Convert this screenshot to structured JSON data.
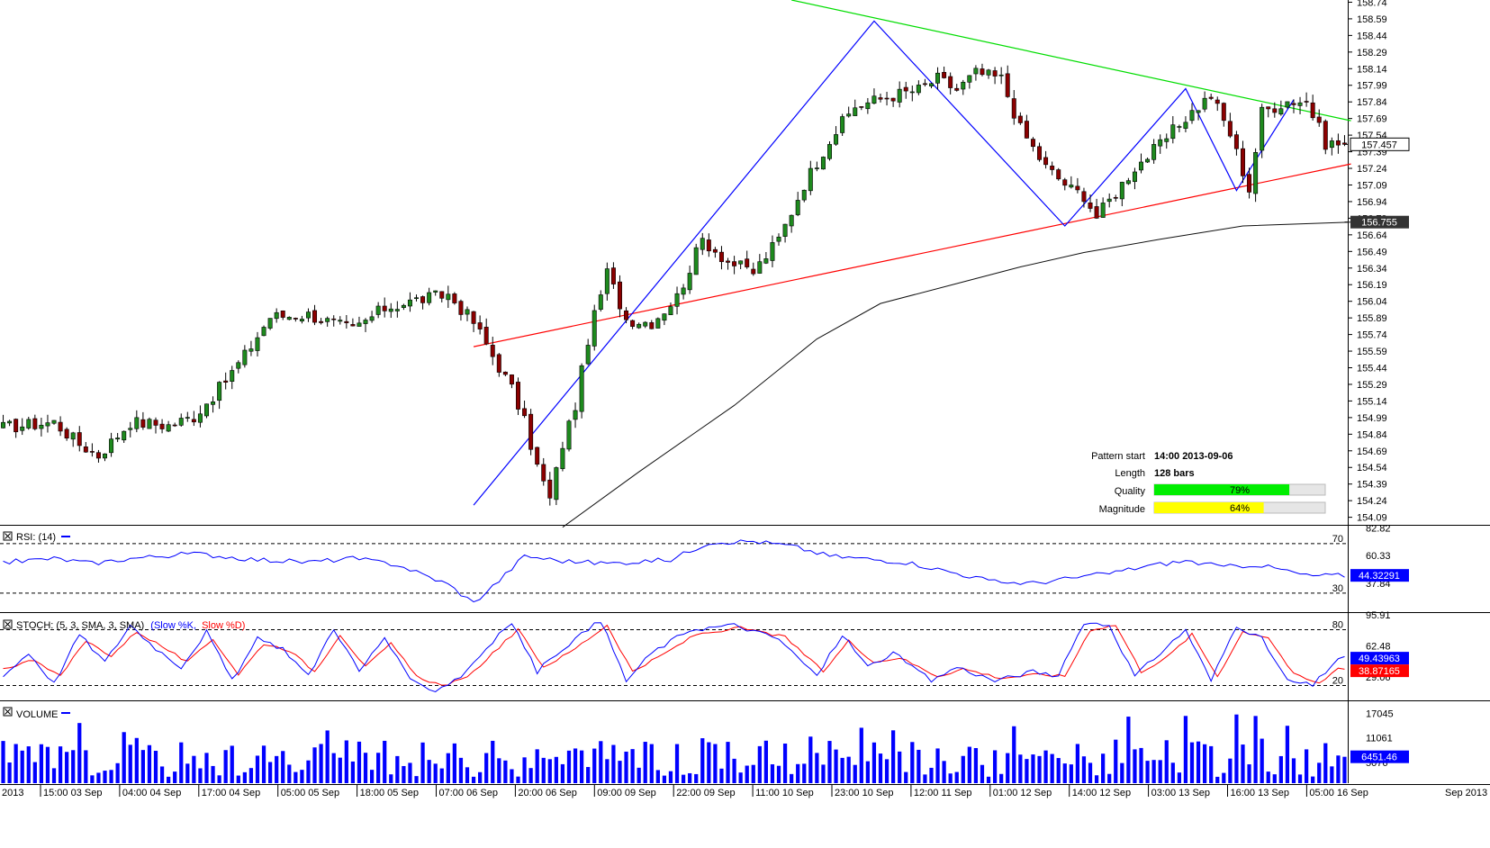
{
  "colors": {
    "up": "#1e8a1e",
    "down": "#8b0000",
    "support": "#ff0000",
    "resistance": "#00dd00",
    "zigzag": "#0000ff",
    "ma": "#111111",
    "rsi": "#0000ff",
    "stoch_k": "#0000ff",
    "stoch_d": "#ff0000",
    "volume": "#0000ff",
    "quality_bar": "#00ee00",
    "magnitude_bar": "#ffff00",
    "price_tag_bg": "#ffffff",
    "ma_tag_bg": "#333333",
    "rsi_tag_bg": "#0000ff",
    "stoch_k_tag_bg": "#0000ff",
    "stoch_d_tag_bg": "#ff0000",
    "volume_tag_bg": "#0000ff"
  },
  "pattern_info": {
    "start_label": "Pattern start",
    "start_value": "14:00 2013-09-06",
    "length_label": "Length",
    "length_value": "128 bars",
    "quality_label": "Quality",
    "quality_value": "79%",
    "quality_fraction": 0.79,
    "magnitude_label": "Magnitude",
    "magnitude_value": "64%",
    "magnitude_fraction": 0.64
  },
  "panels": {
    "rsi_label": "RSI: (14)",
    "stoch_label": "STOCH: (5, 3, SMA, 3, SMA)",
    "stoch_k_name": "(Slow %K,",
    "stoch_d_name": "Slow %D)",
    "volume_label": "VOLUME"
  },
  "chart_data": {
    "type": "candlestick",
    "price_axis": {
      "ticks": [
        "158.74",
        "158.59",
        "158.44",
        "158.29",
        "158.14",
        "157.99",
        "157.84",
        "157.69",
        "157.54",
        "157.39",
        "157.24",
        "157.09",
        "156.94",
        "156.79",
        "156.64",
        "156.49",
        "156.34",
        "156.19",
        "156.04",
        "155.89",
        "155.74",
        "155.59",
        "155.44",
        "155.29",
        "155.14",
        "154.99",
        "154.84",
        "154.69",
        "154.54",
        "154.39",
        "154.24",
        "154.09"
      ],
      "range": [
        154.03,
        158.76
      ],
      "current_price": "157.457",
      "current_price_value": 157.457,
      "ma_value": "156.755",
      "ma_value_num": 156.755
    },
    "time_axis": {
      "labels": [
        "2013",
        "15:00 03 Sep",
        "04:00 04 Sep",
        "17:00 04 Sep",
        "05:00 05 Sep",
        "18:00 05 Sep",
        "07:00 06 Sep",
        "20:00 06 Sep",
        "09:00 09 Sep",
        "22:00 09 Sep",
        "11:00 10 Sep",
        "23:00 10 Sep",
        "12:00 11 Sep",
        "01:00 12 Sep",
        "14:00 12 Sep",
        "03:00 13 Sep",
        "16:00 13 Sep",
        "05:00 16 Sep"
      ],
      "right_label": "Sep 2013"
    },
    "bars": 212,
    "close_waypoints": [
      [
        0,
        154.9
      ],
      [
        8,
        154.95
      ],
      [
        12,
        154.75
      ],
      [
        15,
        154.65
      ],
      [
        20,
        154.95
      ],
      [
        26,
        154.92
      ],
      [
        30,
        155.0
      ],
      [
        34,
        155.25
      ],
      [
        38,
        155.55
      ],
      [
        42,
        155.9
      ],
      [
        48,
        155.92
      ],
      [
        55,
        155.78
      ],
      [
        60,
        155.98
      ],
      [
        65,
        156.05
      ],
      [
        70,
        156.1
      ],
      [
        74,
        155.85
      ],
      [
        77,
        155.55
      ],
      [
        80,
        155.25
      ],
      [
        82,
        154.95
      ],
      [
        84,
        154.55
      ],
      [
        86,
        154.25
      ],
      [
        88,
        154.75
      ],
      [
        90,
        155.1
      ],
      [
        92,
        155.7
      ],
      [
        95,
        156.3
      ],
      [
        98,
        155.88
      ],
      [
        102,
        155.85
      ],
      [
        106,
        156.08
      ],
      [
        110,
        156.6
      ],
      [
        114,
        156.4
      ],
      [
        118,
        156.3
      ],
      [
        122,
        156.6
      ],
      [
        126,
        157.1
      ],
      [
        130,
        157.5
      ],
      [
        134,
        157.8
      ],
      [
        140,
        157.9
      ],
      [
        144,
        157.95
      ],
      [
        147,
        158.05
      ],
      [
        150,
        157.95
      ],
      [
        153,
        158.1
      ],
      [
        157,
        158.05
      ],
      [
        160,
        157.6
      ],
      [
        164,
        157.25
      ],
      [
        168,
        157.05
      ],
      [
        170,
        157.0
      ],
      [
        172,
        156.8
      ],
      [
        174,
        156.95
      ],
      [
        178,
        157.25
      ],
      [
        182,
        157.45
      ],
      [
        186,
        157.7
      ],
      [
        190,
        157.9
      ],
      [
        193,
        157.55
      ],
      [
        196,
        157.05
      ],
      [
        198,
        157.75
      ],
      [
        202,
        157.85
      ],
      [
        205,
        157.85
      ],
      [
        208,
        157.47
      ],
      [
        211,
        157.457
      ]
    ],
    "support_line": {
      "from": [
        74,
        155.63
      ],
      "to": [
        212,
        157.28
      ]
    },
    "resistance_line": {
      "from": [
        124,
        158.76
      ],
      "to": [
        212,
        157.67
      ]
    },
    "zigzag": [
      [
        74,
        154.2
      ],
      [
        137,
        158.57
      ],
      [
        167,
        156.72
      ],
      [
        186,
        157.96
      ],
      [
        194,
        157.04
      ],
      [
        203,
        157.86
      ]
    ],
    "moving_average": [
      [
        88,
        154.0
      ],
      [
        100,
        154.5
      ],
      [
        115,
        155.1
      ],
      [
        128,
        155.7
      ],
      [
        138,
        156.02
      ],
      [
        150,
        156.2
      ],
      [
        160,
        156.35
      ],
      [
        170,
        156.48
      ],
      [
        182,
        156.6
      ],
      [
        195,
        156.72
      ],
      [
        212,
        156.755
      ]
    ],
    "rsi": {
      "axis_ticks": [
        "82.82",
        "60.33",
        "37.84"
      ],
      "range": [
        15.3,
        84.5
      ],
      "levels": [
        70,
        30
      ],
      "current": "44.32291",
      "current_value": 44.32291,
      "waypoints": [
        [
          0,
          55
        ],
        [
          8,
          58
        ],
        [
          14,
          54
        ],
        [
          20,
          58
        ],
        [
          30,
          62
        ],
        [
          40,
          57
        ],
        [
          48,
          55
        ],
        [
          55,
          58
        ],
        [
          62,
          53
        ],
        [
          66,
          45
        ],
        [
          70,
          37
        ],
        [
          74,
          22
        ],
        [
          78,
          40
        ],
        [
          82,
          60
        ],
        [
          88,
          56
        ],
        [
          95,
          54
        ],
        [
          105,
          57
        ],
        [
          111,
          71
        ],
        [
          118,
          72
        ],
        [
          124,
          68
        ],
        [
          130,
          60
        ],
        [
          135,
          58
        ],
        [
          142,
          55
        ],
        [
          150,
          46
        ],
        [
          156,
          39
        ],
        [
          162,
          38
        ],
        [
          168,
          42
        ],
        [
          174,
          46
        ],
        [
          180,
          52
        ],
        [
          186,
          56
        ],
        [
          192,
          51
        ],
        [
          197,
          53
        ],
        [
          202,
          48
        ],
        [
          205,
          44
        ],
        [
          211,
          44.32
        ]
      ]
    },
    "stochastic": {
      "axis_ticks": [
        "95.91",
        "62.48",
        "29.06"
      ],
      "range": [
        5,
        97
      ],
      "levels": [
        80,
        20
      ],
      "k_current": "49.43963",
      "k_value": 49.43963,
      "d_current": "38.87165",
      "d_value": 38.87165,
      "k_waypoints": [
        [
          0,
          30
        ],
        [
          4,
          55
        ],
        [
          8,
          22
        ],
        [
          12,
          75
        ],
        [
          16,
          45
        ],
        [
          20,
          85
        ],
        [
          24,
          60
        ],
        [
          28,
          40
        ],
        [
          32,
          78
        ],
        [
          36,
          25
        ],
        [
          40,
          70
        ],
        [
          44,
          60
        ],
        [
          48,
          30
        ],
        [
          52,
          82
        ],
        [
          56,
          35
        ],
        [
          60,
          72
        ],
        [
          64,
          25
        ],
        [
          68,
          15
        ],
        [
          72,
          30
        ],
        [
          76,
          60
        ],
        [
          80,
          88
        ],
        [
          84,
          35
        ],
        [
          88,
          60
        ],
        [
          94,
          90
        ],
        [
          98,
          25
        ],
        [
          102,
          55
        ],
        [
          108,
          80
        ],
        [
          115,
          85
        ],
        [
          122,
          70
        ],
        [
          128,
          30
        ],
        [
          132,
          75
        ],
        [
          136,
          40
        ],
        [
          140,
          55
        ],
        [
          146,
          25
        ],
        [
          150,
          40
        ],
        [
          156,
          25
        ],
        [
          162,
          35
        ],
        [
          166,
          30
        ],
        [
          170,
          88
        ],
        [
          174,
          85
        ],
        [
          178,
          30
        ],
        [
          182,
          55
        ],
        [
          186,
          80
        ],
        [
          190,
          25
        ],
        [
          194,
          85
        ],
        [
          198,
          70
        ],
        [
          202,
          25
        ],
        [
          206,
          20
        ],
        [
          210,
          49.44
        ]
      ],
      "d_waypoints": [
        [
          0,
          38
        ],
        [
          5,
          48
        ],
        [
          9,
          30
        ],
        [
          13,
          68
        ],
        [
          17,
          52
        ],
        [
          21,
          78
        ],
        [
          25,
          62
        ],
        [
          29,
          45
        ],
        [
          33,
          70
        ],
        [
          37,
          32
        ],
        [
          41,
          65
        ],
        [
          45,
          58
        ],
        [
          49,
          35
        ],
        [
          53,
          75
        ],
        [
          57,
          40
        ],
        [
          61,
          65
        ],
        [
          65,
          30
        ],
        [
          69,
          20
        ],
        [
          73,
          28
        ],
        [
          77,
          55
        ],
        [
          81,
          80
        ],
        [
          85,
          40
        ],
        [
          89,
          55
        ],
        [
          95,
          85
        ],
        [
          99,
          35
        ],
        [
          103,
          50
        ],
        [
          109,
          75
        ],
        [
          116,
          82
        ],
        [
          123,
          72
        ],
        [
          129,
          35
        ],
        [
          133,
          68
        ],
        [
          137,
          45
        ],
        [
          141,
          50
        ],
        [
          147,
          30
        ],
        [
          151,
          38
        ],
        [
          157,
          28
        ],
        [
          163,
          32
        ],
        [
          167,
          30
        ],
        [
          171,
          80
        ],
        [
          175,
          85
        ],
        [
          179,
          35
        ],
        [
          183,
          50
        ],
        [
          187,
          75
        ],
        [
          191,
          30
        ],
        [
          195,
          78
        ],
        [
          199,
          72
        ],
        [
          203,
          32
        ],
        [
          207,
          22
        ],
        [
          210,
          38.87
        ]
      ]
    },
    "volume": {
      "axis_ticks": [
        "17045",
        "11061",
        "5076"
      ],
      "range": [
        0,
        19800
      ],
      "current": "6451.46",
      "current_value": 6451.46,
      "typical_max": 17045
    }
  }
}
